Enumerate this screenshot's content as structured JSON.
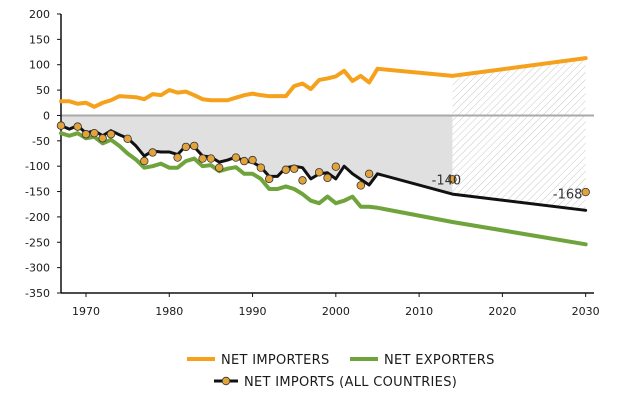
{
  "chart_data": {
    "type": "line",
    "xlim": [
      1967,
      2031
    ],
    "ylim": [
      -350,
      200
    ],
    "yticks": [
      200,
      150,
      100,
      50,
      0,
      -50,
      -100,
      -150,
      -200,
      -250,
      -300,
      -350
    ],
    "xticks": [
      1970,
      1980,
      1990,
      2000,
      2010,
      2020,
      2030
    ],
    "projection_start": 2014,
    "series": [
      {
        "name": "NET IMPORTERS",
        "color": "#f5a11c",
        "x": [
          1967,
          1968,
          1969,
          1970,
          1971,
          1972,
          1973,
          1974,
          1975,
          1976,
          1977,
          1978,
          1979,
          1980,
          1981,
          1982,
          1983,
          1984,
          1985,
          1986,
          1987,
          1988,
          1989,
          1990,
          1991,
          1992,
          1993,
          1994,
          1995,
          1996,
          1997,
          1998,
          1999,
          2000,
          2001,
          2002,
          2003,
          2004,
          2005,
          2014,
          2030
        ],
        "y": [
          28,
          28,
          23,
          25,
          17,
          25,
          30,
          38,
          37,
          36,
          32,
          42,
          40,
          50,
          45,
          47,
          40,
          32,
          30,
          30,
          30,
          35,
          40,
          43,
          40,
          38,
          38,
          38,
          58,
          63,
          52,
          70,
          73,
          77,
          88,
          68,
          78,
          65,
          92,
          78,
          113
        ]
      },
      {
        "name": "NET EXPORTERS",
        "color": "#6fa33b",
        "x": [
          1967,
          1968,
          1969,
          1970,
          1971,
          1972,
          1973,
          1974,
          1975,
          1976,
          1977,
          1978,
          1979,
          1980,
          1981,
          1982,
          1983,
          1984,
          1985,
          1986,
          1987,
          1988,
          1989,
          1990,
          1991,
          1992,
          1993,
          1994,
          1995,
          1996,
          1997,
          1998,
          1999,
          2000,
          2001,
          2002,
          2003,
          2004,
          2005,
          2014,
          2030
        ],
        "y": [
          -35,
          -40,
          -35,
          -45,
          -42,
          -55,
          -48,
          -60,
          -75,
          -87,
          -103,
          -100,
          -95,
          -103,
          -103,
          -90,
          -85,
          -100,
          -98,
          -110,
          -105,
          -102,
          -115,
          -115,
          -125,
          -145,
          -145,
          -140,
          -145,
          -155,
          -168,
          -173,
          -160,
          -173,
          -168,
          -160,
          -180,
          -180,
          -182,
          -210,
          -254
        ]
      },
      {
        "name": "NET IMPORTS (ALL COUNTRIES)",
        "color": "#111111",
        "markerColor": "#e3a33c",
        "x": [
          1967,
          1968,
          1969,
          1970,
          1971,
          1972,
          1973,
          1974,
          1975,
          1976,
          1977,
          1978,
          1979,
          1980,
          1981,
          1982,
          1983,
          1984,
          1985,
          1986,
          1987,
          1988,
          1989,
          1990,
          1991,
          1992,
          1993,
          1994,
          1995,
          1996,
          1997,
          1998,
          1999,
          2000,
          2001,
          2002,
          2003,
          2004,
          2005,
          2014,
          2030
        ],
        "y": [
          -20,
          -27,
          -20,
          -35,
          -30,
          -40,
          -30,
          -38,
          -45,
          -60,
          -80,
          -70,
          -72,
          -72,
          -77,
          -60,
          -62,
          -80,
          -82,
          -92,
          -88,
          -82,
          -90,
          -92,
          -102,
          -120,
          -120,
          -103,
          -100,
          -103,
          -125,
          -115,
          -113,
          -125,
          -100,
          -115,
          -126,
          -137,
          -115,
          -155,
          -187
        ],
        "markers": [
          {
            "x": 1967,
            "y": -20
          },
          {
            "x": 1969,
            "y": -22
          },
          {
            "x": 1970,
            "y": -37
          },
          {
            "x": 1971,
            "y": -35
          },
          {
            "x": 1972,
            "y": -45
          },
          {
            "x": 1973,
            "y": -37
          },
          {
            "x": 1975,
            "y": -46
          },
          {
            "x": 1977,
            "y": -90
          },
          {
            "x": 1978,
            "y": -73
          },
          {
            "x": 1981,
            "y": -83
          },
          {
            "x": 1982,
            "y": -62
          },
          {
            "x": 1983,
            "y": -60
          },
          {
            "x": 1984,
            "y": -85
          },
          {
            "x": 1985,
            "y": -85
          },
          {
            "x": 1986,
            "y": -103
          },
          {
            "x": 1988,
            "y": -83
          },
          {
            "x": 1989,
            "y": -90
          },
          {
            "x": 1990,
            "y": -88
          },
          {
            "x": 1991,
            "y": -103
          },
          {
            "x": 1992,
            "y": -125
          },
          {
            "x": 1994,
            "y": -107
          },
          {
            "x": 1995,
            "y": -105
          },
          {
            "x": 1996,
            "y": -128
          },
          {
            "x": 1998,
            "y": -112
          },
          {
            "x": 1999,
            "y": -123
          },
          {
            "x": 2000,
            "y": -101
          },
          {
            "x": 2003,
            "y": -138
          },
          {
            "x": 2004,
            "y": -115
          },
          {
            "x": 2014,
            "y": -126
          },
          {
            "x": 2030,
            "y": -151
          }
        ]
      }
    ],
    "annotations": [
      {
        "text": "-140",
        "x": 2014,
        "y": -140
      },
      {
        "text": "-168",
        "x": 2030,
        "y": -168
      }
    ],
    "legend": {
      "placement": "bottom",
      "entries": [
        "NET IMPORTERS",
        "NET EXPORTERS",
        "NET IMPORTS (ALL COUNTRIES)"
      ]
    }
  }
}
